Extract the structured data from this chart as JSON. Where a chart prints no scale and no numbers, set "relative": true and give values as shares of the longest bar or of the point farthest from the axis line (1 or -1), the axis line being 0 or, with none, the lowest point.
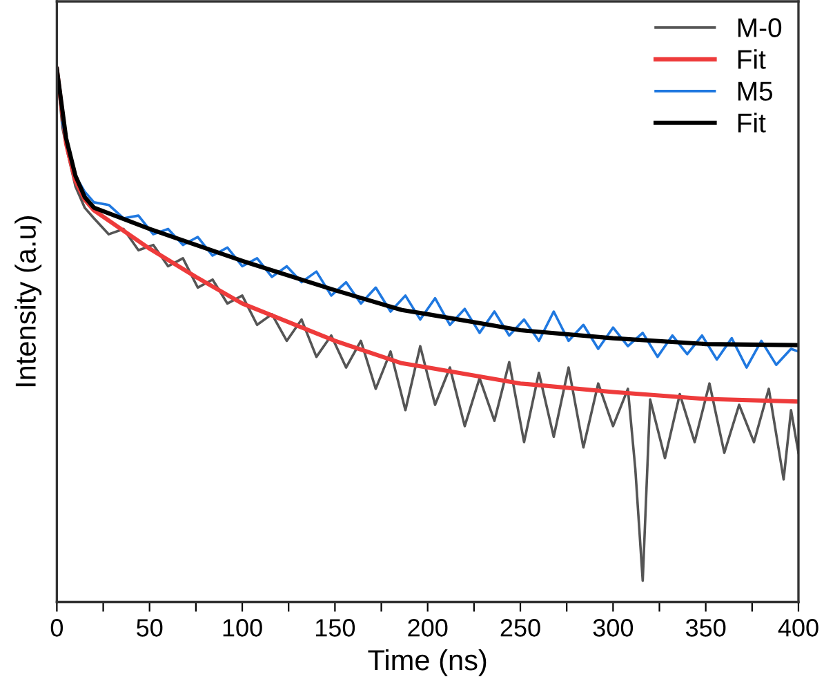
{
  "chart_data": {
    "type": "line",
    "xlabel": "Time (ns)",
    "ylabel": "Intensity (a.u)",
    "relative": true,
    "legend": "top right",
    "grid": false,
    "tick_labels": "x",
    "xlim": [
      0,
      400
    ],
    "xticks": [
      0,
      {
        "value": 25,
        "label": null
      },
      50,
      {
        "value": 75,
        "label": null
      },
      100,
      {
        "value": 125,
        "label": null
      },
      150,
      {
        "value": 175,
        "label": null
      },
      200,
      {
        "value": 225,
        "label": null
      },
      250,
      {
        "value": 275,
        "label": null
      },
      300,
      {
        "value": 325,
        "label": null
      },
      350,
      {
        "value": 375,
        "label": null
      },
      400
    ],
    "series": [
      {
        "name": "M-0",
        "color": "#555555",
        "x": [
          0,
          3,
          6,
          10,
          15,
          20,
          28,
          36,
          44,
          52,
          60,
          68,
          76,
          84,
          92,
          100,
          108,
          116,
          124,
          132,
          140,
          148,
          156,
          164,
          172,
          180,
          188,
          196,
          204,
          212,
          220,
          228,
          236,
          244,
          252,
          260,
          268,
          276,
          284,
          292,
          300,
          308,
          312,
          316,
          320,
          328,
          336,
          344,
          352,
          360,
          368,
          376,
          384,
          392,
          396,
          400
        ],
        "values": [
          1.0,
          0.89,
          0.84,
          0.78,
          0.74,
          0.72,
          0.69,
          0.7,
          0.66,
          0.67,
          0.63,
          0.645,
          0.59,
          0.605,
          0.56,
          0.575,
          0.52,
          0.54,
          0.49,
          0.53,
          0.46,
          0.5,
          0.44,
          0.49,
          0.4,
          0.47,
          0.36,
          0.48,
          0.37,
          0.44,
          0.33,
          0.42,
          0.34,
          0.45,
          0.3,
          0.43,
          0.31,
          0.44,
          0.29,
          0.41,
          0.33,
          0.4,
          0.25,
          0.04,
          0.38,
          0.27,
          0.39,
          0.3,
          0.41,
          0.28,
          0.37,
          0.3,
          0.4,
          0.23,
          0.36,
          0.28
        ]
      },
      {
        "name": "Fit",
        "color": "#ee3b3b",
        "x": [
          0,
          5,
          10,
          15,
          20,
          50,
          75,
          100,
          150,
          186,
          200,
          250,
          300,
          350,
          400
        ],
        "values": [
          1.0,
          0.86,
          0.79,
          0.755,
          0.735,
          0.663,
          0.61,
          0.56,
          0.49,
          0.448,
          0.44,
          0.41,
          0.394,
          0.381,
          0.376
        ]
      },
      {
        "name": "M5",
        "color": "#1f78e0",
        "x": [
          3,
          6,
          10,
          15,
          20,
          28,
          36,
          44,
          52,
          60,
          68,
          76,
          84,
          92,
          100,
          108,
          116,
          124,
          132,
          140,
          148,
          156,
          164,
          172,
          180,
          188,
          196,
          204,
          212,
          220,
          228,
          236,
          244,
          252,
          260,
          268,
          276,
          284,
          292,
          300,
          308,
          316,
          324,
          332,
          340,
          348,
          356,
          364,
          372,
          380,
          388,
          396,
          400
        ],
        "values": [
          0.9,
          0.85,
          0.8,
          0.77,
          0.75,
          0.745,
          0.72,
          0.725,
          0.69,
          0.7,
          0.67,
          0.685,
          0.65,
          0.665,
          0.63,
          0.645,
          0.61,
          0.63,
          0.6,
          0.62,
          0.575,
          0.6,
          0.56,
          0.59,
          0.545,
          0.575,
          0.53,
          0.57,
          0.52,
          0.55,
          0.505,
          0.545,
          0.5,
          0.53,
          0.49,
          0.545,
          0.49,
          0.52,
          0.475,
          0.515,
          0.48,
          0.505,
          0.46,
          0.5,
          0.465,
          0.5,
          0.455,
          0.495,
          0.44,
          0.49,
          0.445,
          0.475,
          0.47
        ]
      },
      {
        "name": "Fit",
        "color": "#000000",
        "x": [
          0,
          5,
          10,
          15,
          20,
          50,
          100,
          150,
          186,
          200,
          250,
          300,
          350,
          400
        ],
        "values": [
          1.0,
          0.87,
          0.8,
          0.76,
          0.74,
          0.7,
          0.64,
          0.585,
          0.548,
          0.54,
          0.51,
          0.495,
          0.484,
          0.482
        ]
      }
    ]
  }
}
